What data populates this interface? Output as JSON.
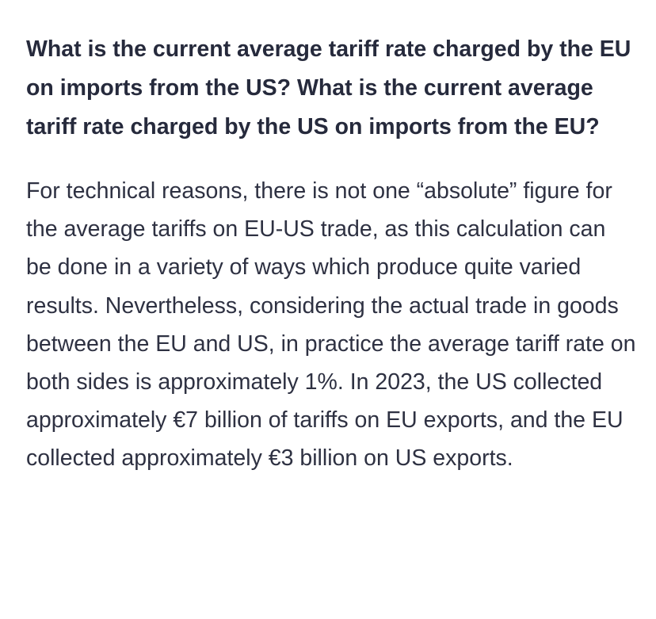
{
  "faq": {
    "question": "What is the current average tariff rate charged by the EU on imports from the US? What is the current average tariff rate charged by the US on imports from the EU?",
    "answer": "For technical reasons, there is not one “absolute” figure for the average tariffs on EU-US trade, as this calculation can be done in a variety of ways which produce quite varied results. Nevertheless, considering the actual trade in goods between the EU and US, in practice the average tariff rate on both sides is approximately 1%. In 2023, the US collected approximately €7 billion of tariffs on EU exports, and the EU collected approximately €3 billion on US exports."
  }
}
